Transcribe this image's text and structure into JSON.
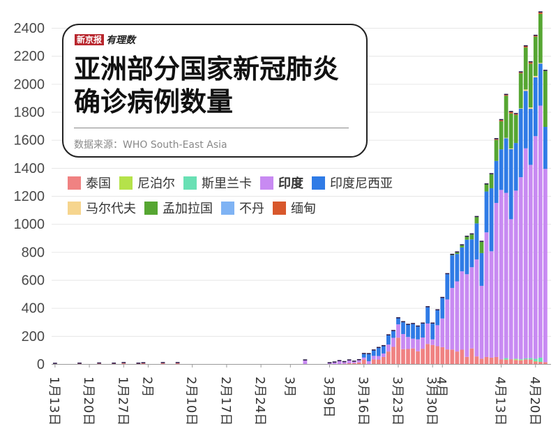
{
  "header": {
    "brand_badge": "新京报",
    "brand_script": "有理数",
    "title_line1": "亚洲部分国家新冠肺炎",
    "title_line2": "确诊病例数量",
    "source": "数据来源：WHO South-East Asia"
  },
  "legend": {
    "row1": [
      {
        "label": "泰国",
        "color": "#f08282",
        "bold": false
      },
      {
        "label": "尼泊尔",
        "color": "#b5e24a",
        "bold": false
      },
      {
        "label": "斯里兰卡",
        "color": "#69e0b4",
        "bold": false
      },
      {
        "label": "印度",
        "color": "#c88af2",
        "bold": true
      },
      {
        "label": "印度尼西亚",
        "color": "#2f7be6",
        "bold": false
      }
    ],
    "row2": [
      {
        "label": "马尔代夫",
        "color": "#f6d58e",
        "bold": false
      },
      {
        "label": "孟加拉国",
        "color": "#56a632",
        "bold": false
      },
      {
        "label": "不丹",
        "color": "#7fb3f4",
        "bold": false
      },
      {
        "label": "缅甸",
        "color": "#d8582c",
        "bold": false
      }
    ]
  },
  "chart_data": {
    "type": "bar",
    "stacked": true,
    "ylim": [
      0,
      2400
    ],
    "yticks": [
      "0",
      "200",
      "400",
      "600",
      "800",
      "1000",
      "1200",
      "1400",
      "1600",
      "1800",
      "2000",
      "2200",
      "2400"
    ],
    "grid": true,
    "xticks": [
      {
        "label": "1月13日",
        "day": 0
      },
      {
        "label": "1月20日",
        "day": 7
      },
      {
        "label": "1月27日",
        "day": 14
      },
      {
        "label": "2月",
        "day": 19
      },
      {
        "label": "2月10日",
        "day": 28
      },
      {
        "label": "2月17日",
        "day": 35
      },
      {
        "label": "2月24日",
        "day": 42
      },
      {
        "label": "3月",
        "day": 48
      },
      {
        "label": "3月9日",
        "day": 56
      },
      {
        "label": "3月16日",
        "day": 63
      },
      {
        "label": "3月23日",
        "day": 70
      },
      {
        "label": "3月30日",
        "day": 77
      },
      {
        "label": "4月",
        "day": 79
      },
      {
        "label": "4月13日",
        "day": 91
      },
      {
        "label": "4月20日",
        "day": 98
      }
    ],
    "x": [
      "1/13",
      "1/14",
      "1/15",
      "1/16",
      "1/17",
      "1/18",
      "1/19",
      "1/20",
      "1/21",
      "1/22",
      "1/23",
      "1/24",
      "1/25",
      "1/26",
      "1/27",
      "1/28",
      "1/29",
      "1/30",
      "1/31",
      "2/1",
      "2/2",
      "2/3",
      "2/4",
      "2/5",
      "2/6",
      "2/7",
      "2/8",
      "2/9",
      "2/10",
      "2/11",
      "2/12",
      "2/13",
      "2/14",
      "2/15",
      "2/16",
      "2/17",
      "2/18",
      "2/19",
      "2/20",
      "2/21",
      "2/22",
      "2/23",
      "2/24",
      "2/25",
      "2/26",
      "2/27",
      "2/28",
      "2/29",
      "3/1",
      "3/2",
      "3/3",
      "3/4",
      "3/5",
      "3/6",
      "3/7",
      "3/8",
      "3/9",
      "3/10",
      "3/11",
      "3/12",
      "3/13",
      "3/14",
      "3/15",
      "3/16",
      "3/17",
      "3/18",
      "3/19",
      "3/20",
      "3/21",
      "3/22",
      "3/23",
      "3/24",
      "3/25",
      "3/26",
      "3/27",
      "3/28",
      "3/29",
      "3/30",
      "3/31",
      "4/1",
      "4/2",
      "4/3",
      "4/4",
      "4/5",
      "4/6",
      "4/7",
      "4/8",
      "4/9",
      "4/10",
      "4/11",
      "4/12",
      "4/13",
      "4/14",
      "4/15",
      "4/16",
      "4/17",
      "4/18",
      "4/19",
      "4/20",
      "4/21",
      "4/22"
    ],
    "series": [
      {
        "name": "泰国",
        "values": [
          1,
          0,
          0,
          0,
          0,
          2,
          0,
          0,
          0,
          3,
          0,
          0,
          2,
          0,
          6,
          0,
          0,
          2,
          5,
          0,
          0,
          0,
          6,
          0,
          0,
          6,
          0,
          0,
          0,
          0,
          0,
          0,
          0,
          0,
          0,
          0,
          0,
          0,
          0,
          0,
          0,
          0,
          0,
          0,
          0,
          0,
          0,
          0,
          0,
          0,
          0,
          0,
          0,
          0,
          0,
          0,
          0,
          0,
          0,
          2,
          5,
          6,
          11,
          32,
          0,
          33,
          32,
          50,
          89,
          122,
          188,
          106,
          107,
          111,
          91,
          109,
          143,
          136,
          127,
          120,
          104,
          103,
          89,
          102,
          51,
          111,
          54,
          38,
          50,
          45,
          50,
          33,
          30,
          34,
          28,
          27,
          33,
          32,
          19,
          15,
          13
        ]
      },
      {
        "name": "尼泊尔",
        "values": [
          0,
          0,
          0,
          0,
          0,
          0,
          0,
          0,
          0,
          0,
          0,
          0,
          0,
          0,
          0,
          0,
          0,
          0,
          0,
          0,
          0,
          0,
          0,
          0,
          0,
          0,
          0,
          0,
          0,
          0,
          0,
          0,
          0,
          0,
          0,
          0,
          0,
          0,
          0,
          0,
          0,
          0,
          0,
          0,
          0,
          0,
          0,
          0,
          0,
          0,
          0,
          0,
          0,
          0,
          0,
          0,
          0,
          0,
          0,
          0,
          0,
          0,
          0,
          0,
          0,
          0,
          0,
          0,
          0,
          0,
          0,
          0,
          0,
          0,
          0,
          0,
          0,
          0,
          0,
          0,
          0,
          0,
          0,
          0,
          0,
          0,
          0,
          0,
          0,
          0,
          0,
          0,
          2,
          0,
          5,
          2,
          0,
          0,
          1,
          0,
          0
        ]
      },
      {
        "name": "斯里兰卡",
        "values": [
          0,
          0,
          0,
          0,
          0,
          0,
          0,
          0,
          0,
          0,
          0,
          0,
          0,
          0,
          0,
          0,
          0,
          0,
          0,
          0,
          0,
          0,
          0,
          0,
          0,
          0,
          0,
          0,
          0,
          0,
          0,
          0,
          0,
          0,
          0,
          0,
          0,
          0,
          0,
          0,
          0,
          0,
          0,
          0,
          0,
          0,
          0,
          0,
          0,
          0,
          0,
          0,
          0,
          0,
          0,
          0,
          0,
          0,
          0,
          0,
          0,
          0,
          0,
          0,
          0,
          0,
          0,
          0,
          0,
          0,
          0,
          0,
          0,
          0,
          0,
          0,
          0,
          0,
          0,
          0,
          0,
          0,
          0,
          0,
          0,
          0,
          0,
          0,
          0,
          0,
          0,
          0,
          10,
          0,
          5,
          5,
          7,
          10,
          17,
          30,
          0
        ]
      },
      {
        "name": "印度",
        "values": [
          0,
          0,
          0,
          0,
          0,
          0,
          0,
          0,
          0,
          0,
          0,
          0,
          0,
          0,
          0,
          0,
          0,
          0,
          0,
          0,
          0,
          0,
          0,
          0,
          0,
          0,
          0,
          0,
          0,
          0,
          0,
          0,
          0,
          0,
          0,
          0,
          0,
          0,
          0,
          0,
          0,
          0,
          0,
          0,
          0,
          0,
          0,
          0,
          0,
          0,
          0,
          25,
          0,
          0,
          0,
          0,
          5,
          10,
          20,
          11,
          20,
          10,
          16,
          14,
          20,
          25,
          25,
          25,
          50,
          65,
          95,
          108,
          86,
          70,
          85,
          80,
          146,
          40,
          150,
          205,
          357,
          440,
          501,
          560,
          590,
          580,
          693,
          520,
          890,
          760,
          1100,
          1210,
          1180,
          1000,
          1200,
          1300,
          1500,
          1380,
          1590,
          1800,
          1380
        ]
      },
      {
        "name": "印度尼西亚",
        "values": [
          0,
          0,
          0,
          0,
          0,
          0,
          0,
          0,
          0,
          0,
          0,
          0,
          0,
          0,
          0,
          0,
          0,
          0,
          0,
          0,
          0,
          0,
          0,
          0,
          0,
          0,
          0,
          0,
          0,
          0,
          0,
          0,
          0,
          0,
          0,
          0,
          0,
          0,
          0,
          0,
          0,
          0,
          0,
          0,
          0,
          0,
          0,
          0,
          0,
          0,
          0,
          0,
          0,
          0,
          0,
          0,
          0,
          0,
          0,
          0,
          0,
          0,
          0,
          25,
          50,
          38,
          57,
          52,
          65,
          48,
          43,
          84,
          86,
          104,
          91,
          99,
          116,
          112,
          106,
          146,
          180,
          233,
          196,
          170,
          247,
          199,
          257,
          234,
          292,
          450,
          300,
          290,
          390,
          500,
          340,
          490,
          410,
          400,
          420,
          300,
          300
        ]
      },
      {
        "name": "马尔代夫",
        "values": [
          0,
          0,
          0,
          0,
          0,
          0,
          0,
          0,
          0,
          0,
          0,
          0,
          0,
          0,
          0,
          0,
          0,
          0,
          0,
          0,
          0,
          0,
          0,
          0,
          0,
          0,
          0,
          0,
          0,
          0,
          0,
          0,
          0,
          0,
          0,
          0,
          0,
          0,
          0,
          0,
          0,
          0,
          0,
          0,
          0,
          0,
          0,
          0,
          0,
          0,
          0,
          0,
          0,
          0,
          0,
          0,
          0,
          0,
          0,
          0,
          0,
          0,
          0,
          0,
          0,
          0,
          0,
          0,
          0,
          0,
          0,
          0,
          0,
          0,
          0,
          0,
          0,
          0,
          0,
          0,
          0,
          0,
          0,
          0,
          0,
          0,
          0,
          0,
          0,
          0,
          0,
          0,
          3,
          5,
          0,
          2,
          10,
          10,
          10,
          5,
          0
        ]
      },
      {
        "name": "孟加拉国",
        "values": [
          0,
          0,
          0,
          0,
          0,
          0,
          0,
          0,
          0,
          0,
          0,
          0,
          0,
          0,
          0,
          0,
          0,
          0,
          0,
          0,
          0,
          0,
          0,
          0,
          0,
          0,
          0,
          0,
          0,
          0,
          0,
          0,
          0,
          0,
          0,
          0,
          0,
          0,
          0,
          0,
          0,
          0,
          0,
          0,
          0,
          0,
          0,
          0,
          0,
          0,
          0,
          0,
          0,
          0,
          0,
          0,
          0,
          0,
          0,
          0,
          0,
          0,
          0,
          0,
          0,
          0,
          0,
          0,
          0,
          0,
          0,
          0,
          0,
          0,
          0,
          0,
          0,
          0,
          0,
          0,
          0,
          3,
          10,
          15,
          20,
          35,
          45,
          80,
          50,
          100,
          150,
          200,
          300,
          250,
          200,
          250,
          300,
          312,
          280,
          350,
          400
        ]
      },
      {
        "name": "不丹",
        "values": [
          0,
          0,
          0,
          0,
          0,
          0,
          0,
          0,
          0,
          0,
          0,
          0,
          0,
          0,
          0,
          0,
          0,
          0,
          0,
          0,
          0,
          0,
          0,
          0,
          0,
          0,
          0,
          0,
          0,
          0,
          0,
          0,
          0,
          0,
          0,
          0,
          0,
          0,
          0,
          0,
          0,
          0,
          0,
          0,
          0,
          0,
          0,
          0,
          0,
          0,
          0,
          0,
          0,
          0,
          0,
          0,
          0,
          0,
          0,
          0,
          0,
          0,
          0,
          0,
          0,
          0,
          0,
          0,
          0,
          0,
          0,
          0,
          0,
          0,
          0,
          0,
          0,
          0,
          0,
          0,
          0,
          0,
          0,
          0,
          0,
          0,
          0,
          0,
          0,
          0,
          0,
          0,
          0,
          0,
          0,
          0,
          0,
          0,
          0,
          0,
          0
        ]
      },
      {
        "name": "缅甸",
        "values": [
          0,
          0,
          0,
          0,
          0,
          0,
          0,
          0,
          0,
          0,
          0,
          0,
          0,
          0,
          0,
          0,
          0,
          0,
          0,
          0,
          0,
          0,
          0,
          0,
          0,
          0,
          0,
          0,
          0,
          0,
          0,
          0,
          0,
          0,
          0,
          0,
          0,
          0,
          0,
          0,
          0,
          0,
          0,
          0,
          0,
          0,
          0,
          0,
          0,
          0,
          0,
          0,
          0,
          0,
          0,
          0,
          0,
          0,
          0,
          0,
          0,
          0,
          0,
          0,
          0,
          0,
          0,
          0,
          0,
          0,
          0,
          0,
          0,
          0,
          0,
          0,
          0,
          0,
          0,
          0,
          0,
          0,
          0,
          0,
          0,
          0,
          0,
          0,
          0,
          0,
          5,
          8,
          6,
          10,
          6,
          6,
          8,
          10,
          6,
          10,
          0
        ]
      }
    ]
  }
}
